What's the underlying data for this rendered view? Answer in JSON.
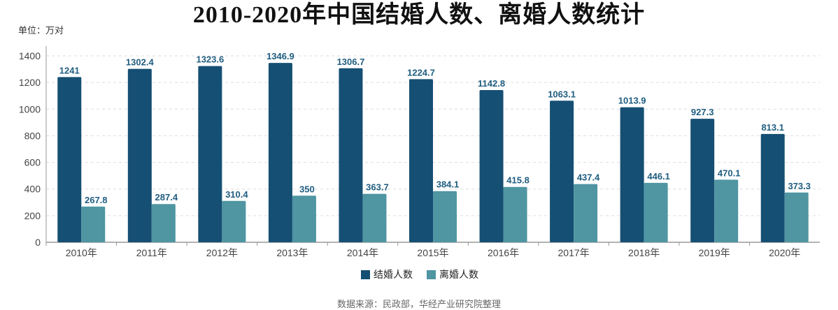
{
  "chart_data": {
    "type": "bar",
    "title": "2010-2020年中国结婚人数、离婚人数统计",
    "unit_label": "单位：万对",
    "source": "数据来源：民政部，华经产业研究院整理",
    "categories": [
      "2010年",
      "2011年",
      "2012年",
      "2013年",
      "2014年",
      "2015年",
      "2016年",
      "2017年",
      "2018年",
      "2019年",
      "2020年"
    ],
    "series": [
      {
        "name": "结婚人数",
        "color": "#154f73",
        "values": [
          1241,
          1302.4,
          1323.6,
          1346.9,
          1306.7,
          1224.7,
          1142.8,
          1063.1,
          1013.9,
          927.3,
          813.1
        ]
      },
      {
        "name": "离婚人数",
        "color": "#4f95a2",
        "values": [
          267.8,
          287.4,
          310.4,
          350,
          363.7,
          384.1,
          415.8,
          437.4,
          446.1,
          470.1,
          373.3
        ]
      }
    ],
    "ylim": [
      0,
      1400
    ],
    "yticks": [
      0,
      200,
      400,
      600,
      800,
      1000,
      1200,
      1400
    ],
    "grid": true,
    "legend_position": "bottom"
  }
}
